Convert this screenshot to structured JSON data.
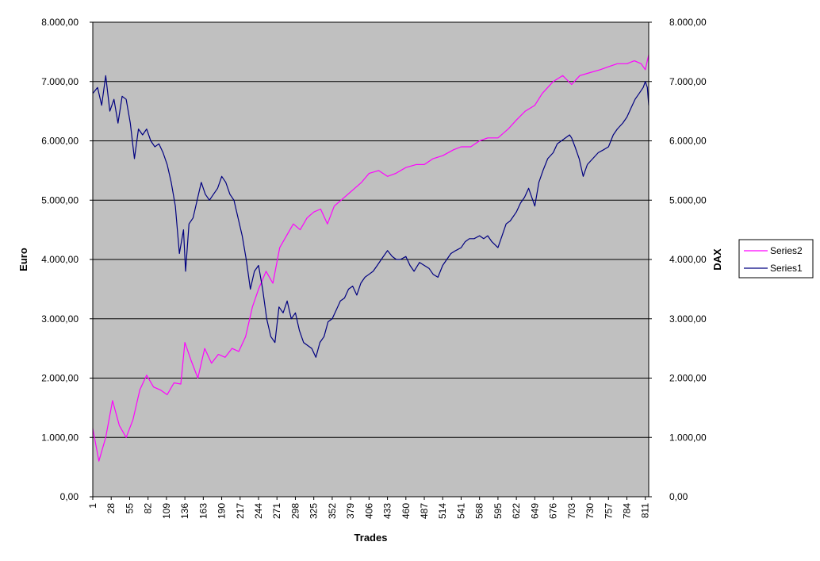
{
  "chart_data": {
    "type": "line",
    "title": "",
    "xlabel": "Trades",
    "ylabel_left": "Euro",
    "ylabel_right": "DAX",
    "x_range": [
      1,
      816
    ],
    "ylim": [
      0,
      8000
    ],
    "y_ticks": [
      "0,00",
      "1.000,00",
      "2.000,00",
      "3.000,00",
      "4.000,00",
      "5.000,00",
      "6.000,00",
      "7.000,00",
      "8.000,00"
    ],
    "x_ticks": [
      1,
      28,
      55,
      82,
      109,
      136,
      163,
      190,
      217,
      244,
      271,
      298,
      325,
      352,
      379,
      406,
      433,
      460,
      487,
      514,
      541,
      568,
      595,
      622,
      649,
      676,
      703,
      730,
      757,
      784,
      811
    ],
    "grid": "horizontal",
    "legend_position": "right",
    "plot_background": "#c0c0c0",
    "series": [
      {
        "name": "Series2",
        "color": "#ff00ff",
        "axis": "left",
        "x": [
          1,
          10,
          20,
          30,
          40,
          50,
          60,
          70,
          80,
          90,
          100,
          110,
          120,
          130,
          136,
          145,
          155,
          165,
          175,
          185,
          195,
          205,
          215,
          225,
          235,
          244,
          255,
          265,
          275,
          285,
          295,
          305,
          315,
          325,
          335,
          345,
          355,
          365,
          375,
          385,
          395,
          406,
          420,
          433,
          445,
          460,
          475,
          487,
          500,
          514,
          530,
          541,
          555,
          568,
          580,
          595,
          610,
          622,
          635,
          649,
          660,
          676,
          690,
          703,
          715,
          730,
          745,
          757,
          770,
          784,
          795,
          805,
          811,
          816
        ],
        "y": [
          1150,
          600,
          1000,
          1620,
          1200,
          1000,
          1300,
          1800,
          2050,
          1850,
          1800,
          1720,
          1920,
          1900,
          2600,
          2300,
          2000,
          2500,
          2250,
          2400,
          2350,
          2500,
          2450,
          2700,
          3200,
          3500,
          3800,
          3600,
          4200,
          4400,
          4600,
          4500,
          4700,
          4800,
          4850,
          4600,
          4900,
          5000,
          5100,
          5200,
          5300,
          5450,
          5500,
          5400,
          5450,
          5550,
          5600,
          5600,
          5700,
          5750,
          5850,
          5900,
          5900,
          6000,
          6050,
          6050,
          6200,
          6350,
          6500,
          6600,
          6800,
          7000,
          7100,
          6950,
          7100,
          7150,
          7200,
          7250,
          7300,
          7300,
          7350,
          7300,
          7200,
          7450
        ]
      },
      {
        "name": "Series1",
        "color": "#000080",
        "axis": "left",
        "x": [
          1,
          8,
          14,
          20,
          26,
          32,
          38,
          44,
          50,
          56,
          62,
          68,
          74,
          80,
          86,
          92,
          98,
          104,
          110,
          116,
          122,
          128,
          134,
          137,
          142,
          148,
          154,
          160,
          166,
          172,
          178,
          184,
          190,
          196,
          202,
          208,
          214,
          220,
          226,
          232,
          238,
          244,
          250,
          256,
          262,
          268,
          274,
          280,
          286,
          292,
          298,
          304,
          310,
          316,
          322,
          328,
          334,
          340,
          346,
          352,
          358,
          364,
          370,
          376,
          382,
          388,
          394,
          400,
          406,
          412,
          418,
          424,
          433,
          440,
          446,
          452,
          460,
          466,
          472,
          480,
          487,
          494,
          500,
          507,
          514,
          520,
          526,
          533,
          541,
          547,
          553,
          560,
          568,
          574,
          580,
          586,
          595,
          601,
          607,
          613,
          622,
          628,
          634,
          640,
          649,
          655,
          661,
          668,
          676,
          682,
          688,
          694,
          700,
          703,
          708,
          714,
          720,
          726,
          734,
          742,
          750,
          757,
          764,
          770,
          778,
          784,
          790,
          796,
          802,
          808,
          811,
          814,
          816
        ],
        "y": [
          6800,
          6900,
          6600,
          7100,
          6500,
          6700,
          6300,
          6750,
          6700,
          6300,
          5700,
          6200,
          6100,
          6200,
          6000,
          5900,
          5950,
          5800,
          5600,
          5300,
          4900,
          4100,
          4500,
          3800,
          4600,
          4700,
          5000,
          5300,
          5100,
          5000,
          5100,
          5200,
          5400,
          5300,
          5100,
          5000,
          4700,
          4400,
          4000,
          3500,
          3800,
          3900,
          3500,
          3000,
          2700,
          2600,
          3200,
          3100,
          3300,
          3000,
          3100,
          2800,
          2600,
          2550,
          2500,
          2350,
          2600,
          2700,
          2950,
          3000,
          3150,
          3300,
          3350,
          3500,
          3550,
          3400,
          3600,
          3700,
          3750,
          3800,
          3900,
          4000,
          4150,
          4050,
          4000,
          4000,
          4050,
          3900,
          3800,
          3950,
          3900,
          3850,
          3750,
          3700,
          3900,
          4000,
          4100,
          4150,
          4200,
          4300,
          4350,
          4350,
          4400,
          4350,
          4400,
          4300,
          4200,
          4400,
          4600,
          4650,
          4800,
          4950,
          5050,
          5200,
          4900,
          5300,
          5500,
          5700,
          5800,
          5950,
          6000,
          6050,
          6100,
          6050,
          5900,
          5700,
          5400,
          5600,
          5700,
          5800,
          5850,
          5900,
          6100,
          6200,
          6300,
          6400,
          6550,
          6700,
          6800,
          6900,
          7000,
          6900,
          6600
        ]
      }
    ]
  },
  "legend": {
    "items": [
      {
        "label": "Series2",
        "color": "#ff00ff"
      },
      {
        "label": "Series1",
        "color": "#000080"
      }
    ]
  }
}
